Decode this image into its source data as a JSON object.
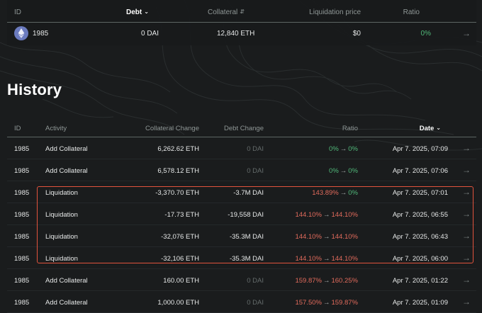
{
  "vault": {
    "headers": {
      "id": "ID",
      "debt": "Debt",
      "collateral": "Collateral",
      "liquidation_price": "Liquidation price",
      "ratio": "Ratio"
    },
    "row": {
      "id": "1985",
      "debt": "0 DAI",
      "collateral": "12,840 ETH",
      "liquidation_price": "$0",
      "ratio": "0%"
    }
  },
  "history": {
    "title": "History",
    "headers": {
      "id": "ID",
      "activity": "Activity",
      "collateral_change": "Collateral Change",
      "debt_change": "Debt Change",
      "ratio": "Ratio",
      "date": "Date"
    },
    "rows": [
      {
        "id": "1985",
        "activity": "Add Collateral",
        "collateral_change": "6,262.62 ETH",
        "debt_change": "0 DAI",
        "ratio_from": "0%",
        "ratio_to": "0%",
        "date": "Apr 7. 2025, 07:09"
      },
      {
        "id": "1985",
        "activity": "Add Collateral",
        "collateral_change": "6,578.12 ETH",
        "debt_change": "0 DAI",
        "ratio_from": "0%",
        "ratio_to": "0%",
        "date": "Apr 7. 2025, 07:06"
      },
      {
        "id": "1985",
        "activity": "Liquidation",
        "collateral_change": "-3,370.70 ETH",
        "debt_change": "-3.7M DAI",
        "ratio_from": "143.89%",
        "ratio_to": "0%",
        "date": "Apr 7. 2025, 07:01"
      },
      {
        "id": "1985",
        "activity": "Liquidation",
        "collateral_change": "-17.73 ETH",
        "debt_change": "-19,558 DAI",
        "ratio_from": "144.10%",
        "ratio_to": "144.10%",
        "date": "Apr 7. 2025, 06:55"
      },
      {
        "id": "1985",
        "activity": "Liquidation",
        "collateral_change": "-32,076 ETH",
        "debt_change": "-35.3M DAI",
        "ratio_from": "144.10%",
        "ratio_to": "144.10%",
        "date": "Apr 7. 2025, 06:43"
      },
      {
        "id": "1985",
        "activity": "Liquidation",
        "collateral_change": "-32,106 ETH",
        "debt_change": "-35.3M DAI",
        "ratio_from": "144.10%",
        "ratio_to": "144.10%",
        "date": "Apr 7. 2025, 06:00"
      },
      {
        "id": "1985",
        "activity": "Add Collateral",
        "collateral_change": "160.00 ETH",
        "debt_change": "0 DAI",
        "ratio_from": "159.87%",
        "ratio_to": "160.25%",
        "date": "Apr 7. 2025, 01:22"
      },
      {
        "id": "1985",
        "activity": "Add Collateral",
        "collateral_change": "1,000.00 ETH",
        "debt_change": "0 DAI",
        "ratio_from": "157.50%",
        "ratio_to": "159.87%",
        "date": "Apr 7. 2025, 01:09"
      }
    ]
  },
  "icons": {
    "token": "ethereum-icon",
    "row_action": "arrow-right-icon",
    "sort": "chevron-down-icon"
  },
  "colors": {
    "positive": "#51b97a",
    "negative": "#e26b5c",
    "highlight": "#e2533d",
    "background": "#1a1c1d"
  }
}
